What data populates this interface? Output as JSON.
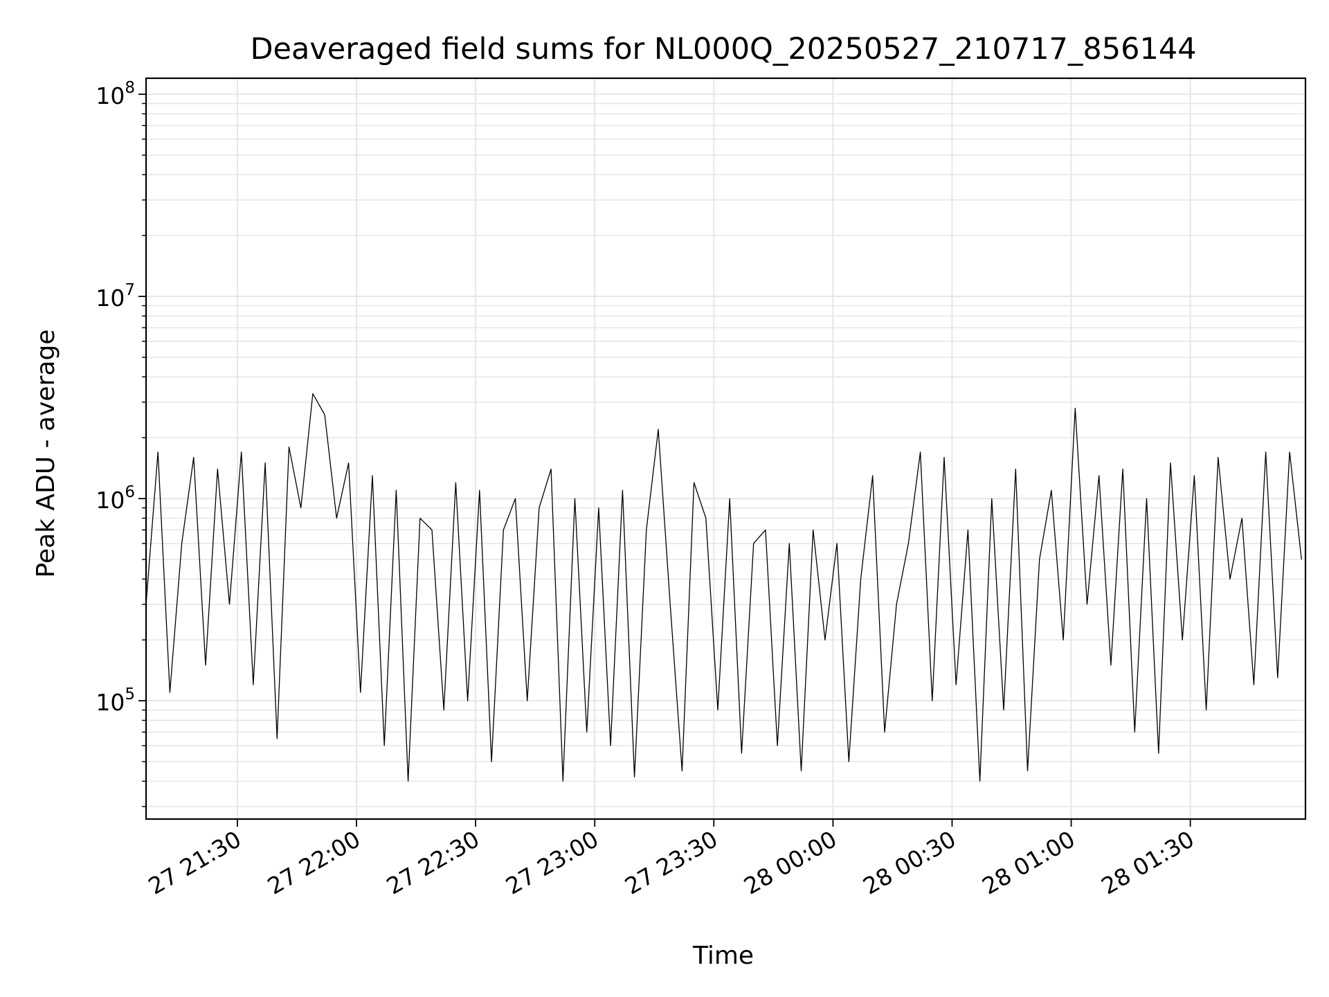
{
  "chart_data": {
    "type": "line",
    "title": "Deaveraged field sums for NL000Q_20250527_210717_856144",
    "xlabel": "Time",
    "ylabel": "Peak ADU - average",
    "yscale": "log",
    "ylim": [
      26000,
      120000000
    ],
    "xlim": [
      "2025-05-27T21:07:00",
      "2025-05-28T01:59:00"
    ],
    "grid": true,
    "line_color": "#000000",
    "grid_color": "#e6e6e6",
    "x_ticks": [
      {
        "value": "2025-05-27T21:30:00",
        "label": "27 21:30"
      },
      {
        "value": "2025-05-27T22:00:00",
        "label": "27 22:00"
      },
      {
        "value": "2025-05-27T22:30:00",
        "label": "27 22:30"
      },
      {
        "value": "2025-05-27T23:00:00",
        "label": "27 23:00"
      },
      {
        "value": "2025-05-27T23:30:00",
        "label": "27 23:30"
      },
      {
        "value": "2025-05-28T00:00:00",
        "label": "28 00:00"
      },
      {
        "value": "2025-05-28T00:30:00",
        "label": "28 00:30"
      },
      {
        "value": "2025-05-28T01:00:00",
        "label": "28 01:00"
      },
      {
        "value": "2025-05-28T01:30:00",
        "label": "28 01:30"
      }
    ],
    "y_ticks": [
      {
        "value": 100000,
        "base": "10",
        "exp": "5"
      },
      {
        "value": 1000000,
        "base": "10",
        "exp": "6"
      },
      {
        "value": 10000000,
        "base": "10",
        "exp": "7"
      },
      {
        "value": 100000000,
        "base": "10",
        "exp": "8"
      }
    ],
    "series": [
      {
        "x": [
          "2025-05-27T21:07:00",
          "2025-05-27T21:10:00",
          "2025-05-27T21:13:00",
          "2025-05-27T21:16:00",
          "2025-05-27T21:19:00",
          "2025-05-27T21:22:00",
          "2025-05-27T21:25:00",
          "2025-05-27T21:28:00",
          "2025-05-27T21:31:00",
          "2025-05-27T21:34:00",
          "2025-05-27T21:37:00",
          "2025-05-27T21:40:00",
          "2025-05-27T21:43:00",
          "2025-05-27T21:46:00",
          "2025-05-27T21:49:00",
          "2025-05-27T21:52:00",
          "2025-05-27T21:55:00",
          "2025-05-27T21:58:00",
          "2025-05-27T22:01:00",
          "2025-05-27T22:04:00",
          "2025-05-27T22:07:00",
          "2025-05-27T22:10:00",
          "2025-05-27T22:13:00",
          "2025-05-27T22:16:00",
          "2025-05-27T22:19:00",
          "2025-05-27T22:22:00",
          "2025-05-27T22:25:00",
          "2025-05-27T22:28:00",
          "2025-05-27T22:31:00",
          "2025-05-27T22:34:00",
          "2025-05-27T22:37:00",
          "2025-05-27T22:40:00",
          "2025-05-27T22:43:00",
          "2025-05-27T22:46:00",
          "2025-05-27T22:49:00",
          "2025-05-27T22:52:00",
          "2025-05-27T22:55:00",
          "2025-05-27T22:58:00",
          "2025-05-27T23:01:00",
          "2025-05-27T23:04:00",
          "2025-05-27T23:07:00",
          "2025-05-27T23:10:00",
          "2025-05-27T23:13:00",
          "2025-05-27T23:16:00",
          "2025-05-27T23:19:00",
          "2025-05-27T23:22:00",
          "2025-05-27T23:25:00",
          "2025-05-27T23:28:00",
          "2025-05-27T23:31:00",
          "2025-05-27T23:34:00",
          "2025-05-27T23:37:00",
          "2025-05-27T23:40:00",
          "2025-05-27T23:43:00",
          "2025-05-27T23:46:00",
          "2025-05-27T23:49:00",
          "2025-05-27T23:52:00",
          "2025-05-27T23:55:00",
          "2025-05-27T23:58:00",
          "2025-05-28T00:01:00",
          "2025-05-28T00:04:00",
          "2025-05-28T00:07:00",
          "2025-05-28T00:10:00",
          "2025-05-28T00:13:00",
          "2025-05-28T00:16:00",
          "2025-05-28T00:19:00",
          "2025-05-28T00:22:00",
          "2025-05-28T00:25:00",
          "2025-05-28T00:28:00",
          "2025-05-28T00:31:00",
          "2025-05-28T00:34:00",
          "2025-05-28T00:37:00",
          "2025-05-28T00:40:00",
          "2025-05-28T00:43:00",
          "2025-05-28T00:46:00",
          "2025-05-28T00:49:00",
          "2025-05-28T00:52:00",
          "2025-05-28T00:55:00",
          "2025-05-28T00:58:00",
          "2025-05-28T01:01:00",
          "2025-05-28T01:04:00",
          "2025-05-28T01:07:00",
          "2025-05-28T01:10:00",
          "2025-05-28T01:13:00",
          "2025-05-28T01:16:00",
          "2025-05-28T01:19:00",
          "2025-05-28T01:22:00",
          "2025-05-28T01:25:00",
          "2025-05-28T01:28:00",
          "2025-05-28T01:31:00",
          "2025-05-28T01:34:00",
          "2025-05-28T01:37:00",
          "2025-05-28T01:40:00",
          "2025-05-28T01:43:00",
          "2025-05-28T01:46:00",
          "2025-05-28T01:49:00",
          "2025-05-28T01:52:00",
          "2025-05-28T01:55:00",
          "2025-05-28T01:58:00"
        ],
        "values": [
          300000,
          1700000,
          110000,
          600000,
          1600000,
          150000,
          1400000,
          300000,
          1700000,
          120000,
          1500000,
          65000,
          1800000,
          900000,
          3300000,
          2600000,
          800000,
          1500000,
          110000,
          1300000,
          60000,
          1100000,
          40000,
          800000,
          700000,
          90000,
          1200000,
          100000,
          1100000,
          50000,
          700000,
          1000000,
          100000,
          900000,
          1400000,
          40000,
          1000000,
          70000,
          900000,
          60000,
          1100000,
          42000,
          700000,
          2200000,
          300000,
          45000,
          1200000,
          800000,
          90000,
          1000000,
          55000,
          600000,
          700000,
          60000,
          600000,
          45000,
          700000,
          200000,
          600000,
          50000,
          400000,
          1300000,
          70000,
          300000,
          600000,
          1700000,
          100000,
          1600000,
          120000,
          700000,
          40000,
          1000000,
          90000,
          1400000,
          45000,
          500000,
          1100000,
          200000,
          2800000,
          300000,
          1300000,
          150000,
          1400000,
          70000,
          1000000,
          55000,
          1500000,
          200000,
          1300000,
          90000,
          1600000,
          400000,
          800000,
          120000,
          1700000,
          130000,
          1700000,
          500000
        ]
      }
    ]
  }
}
